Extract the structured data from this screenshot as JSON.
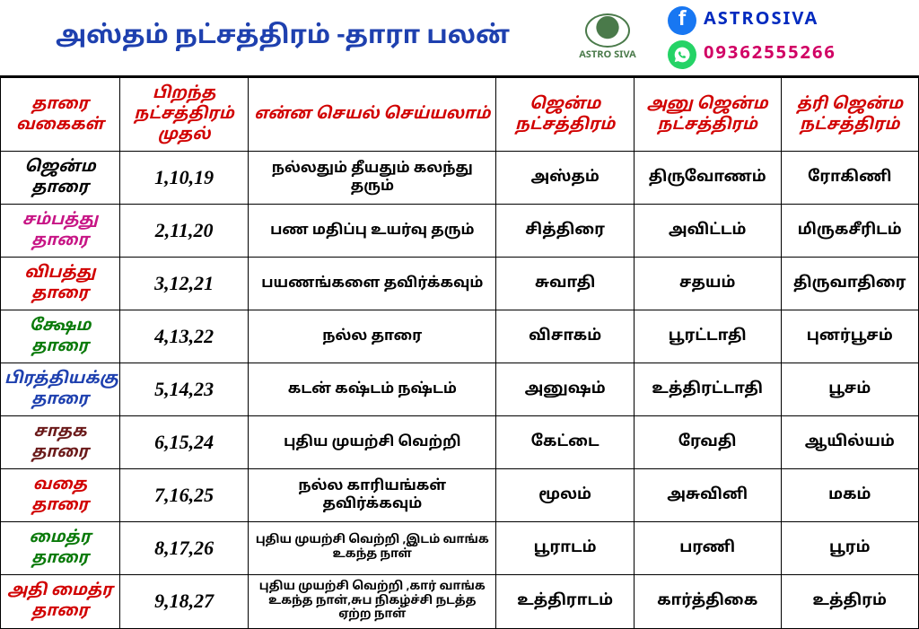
{
  "header": {
    "title": "அஸ்தம் நட்சத்திரம் -தாரா பலன்",
    "logo_text": "ASTRO SIVA",
    "facebook": "ASTROSIVA",
    "phone": "09362555266",
    "facebook_color": "#002abf",
    "phone_color": "#d10064"
  },
  "columns": [
    "தாரை வகைகள்",
    "பிறந்த நட்சத்திரம் முதல்",
    "என்ன செயல் செய்யலாம்",
    "ஜென்ம நட்சத்திரம்",
    "அனு ஜென்ம நட்சத்திரம்",
    "த்ரி ஜென்ம நட்சத்திரம்"
  ],
  "rows": [
    {
      "type": "ஜென்ம தாரை",
      "color": "#000000",
      "numbers": "1,10,19",
      "desc": "நல்லதும் தீயதும் கலந்து தரும்",
      "s1": "அஸ்தம்",
      "s2": "திருவோணம்",
      "s3": "ரோகிணி",
      "small": false
    },
    {
      "type": "சம்பத்து தாரை",
      "color": "#c71585",
      "numbers": "2,11,20",
      "desc": "பண மதிப்பு உயர்வு தரும்",
      "s1": "சித்திரை",
      "s2": "அவிட்டம்",
      "s3": "மிருகசீரிடம்",
      "small": false
    },
    {
      "type": "விபத்து தாரை",
      "color": "#d10000",
      "numbers": "3,12,21",
      "desc": "பயணங்களை தவிர்க்கவும்",
      "s1": "சுவாதி",
      "s2": "சதயம்",
      "s3": "திருவாதிரை",
      "small": false
    },
    {
      "type": "க்ஷேம தாரை",
      "color": "#0a7a0a",
      "numbers": "4,13,22",
      "desc": "நல்ல தாரை",
      "s1": "விசாகம்",
      "s2": "பூரட்டாதி",
      "s3": "புனர்பூசம்",
      "small": false
    },
    {
      "type": "பிரத்தியக்கு தாரை",
      "color": "#1e40af",
      "numbers": "5,14,23",
      "desc": "கடன் கஷ்டம் நஷ்டம்",
      "s1": "அனுஷம்",
      "s2": "உத்திரட்டாதி",
      "s3": "பூசம்",
      "small": false
    },
    {
      "type": "சாதக தாரை",
      "color": "#6b1a1a",
      "numbers": "6,15,24",
      "desc": "புதிய முயற்சி வெற்றி",
      "s1": "கேட்டை",
      "s2": "ரேவதி",
      "s3": "ஆயில்யம்",
      "small": false
    },
    {
      "type": "வதை தாரை",
      "color": "#d10000",
      "numbers": "7,16,25",
      "desc": "நல்ல காரியங்கள் தவிர்க்கவும்",
      "s1": "மூலம்",
      "s2": "அசுவினி",
      "s3": "மகம்",
      "small": false
    },
    {
      "type": "மைத்ர தாரை",
      "color": "#0a7a0a",
      "numbers": "8,17,26",
      "desc": "புதிய முயற்சி வெற்றி ,இடம் வாங்க உகந்த நாள்",
      "s1": "பூராடம்",
      "s2": "பரணி",
      "s3": "பூரம்",
      "small": true
    },
    {
      "type": "அதி மைத்ர தாரை",
      "color": "#d10000",
      "numbers": "9,18,27",
      "desc": "புதிய முயற்சி வெற்றி ,கார் வாங்க உகந்த நாள்,சுப நிகழ்ச்சி நடத்த ஏற்ற நாள்",
      "s1": "உத்திராடம்",
      "s2": "கார்த்திகை",
      "s3": "உத்திரம்",
      "small": true
    }
  ],
  "colors": {
    "header_text": "#d10000",
    "title_color": "#1e40af",
    "border": "#000000",
    "background": "#ffffff"
  }
}
